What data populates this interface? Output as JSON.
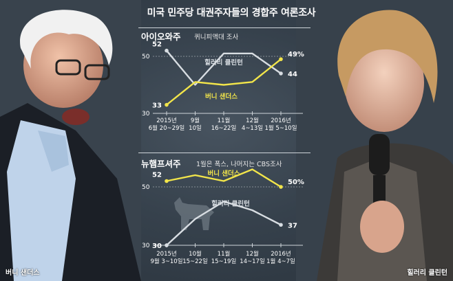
{
  "title": "미국 민주당 대권주자들의 경합주 여론조사",
  "colors": {
    "sanders": "#f2e54a",
    "clinton": "#d8dde2",
    "axis": "#cfd5da"
  },
  "photo_captions": {
    "left": "버니 샌더스",
    "right": "힐러리 클린턴"
  },
  "chart_data": [
    {
      "type": "line",
      "title": "아이오와주",
      "subtitle": "퀴니피액대 조사",
      "x": [
        [
          "2015년",
          "6월 20~29일"
        ],
        [
          "9월",
          "10일"
        ],
        [
          "11월",
          "16~22일"
        ],
        [
          "12월",
          "4~13일"
        ],
        [
          "2016년",
          "1월 5~10일"
        ]
      ],
      "yticks": [
        50,
        30
      ],
      "ylim": [
        30,
        53
      ],
      "series": [
        {
          "name": "힐러리 클린턴",
          "color": "#d8dde2",
          "values": [
            52,
            40,
            51,
            51,
            44
          ],
          "end_label": "44"
        },
        {
          "name": "버니 샌더스",
          "color": "#f2e54a",
          "values": [
            33,
            41,
            40,
            41,
            49
          ],
          "end_label": "49%"
        }
      ],
      "start_labels": [
        "52",
        "33"
      ]
    },
    {
      "type": "line",
      "title": "뉴햄프셔주",
      "subtitle": "1월은 폭스, 나머지는 CBS조사",
      "x": [
        [
          "2015년",
          "9월 3~10일"
        ],
        [
          "10월",
          "15~22일"
        ],
        [
          "11월",
          "15~19일"
        ],
        [
          "12월",
          "14~17일"
        ],
        [
          "2016년",
          "1월 4~7일"
        ]
      ],
      "yticks": [
        50,
        30
      ],
      "ylim": [
        30,
        53
      ],
      "series": [
        {
          "name": "버니 샌더스",
          "color": "#f2e54a",
          "values": [
            52,
            54,
            52,
            56,
            50
          ],
          "end_label": "50%"
        },
        {
          "name": "힐러리 클린턴",
          "color": "#d8dde2",
          "values": [
            30,
            39,
            45,
            42,
            37
          ],
          "end_label": "37"
        }
      ],
      "start_labels": [
        "52",
        "30"
      ]
    }
  ]
}
